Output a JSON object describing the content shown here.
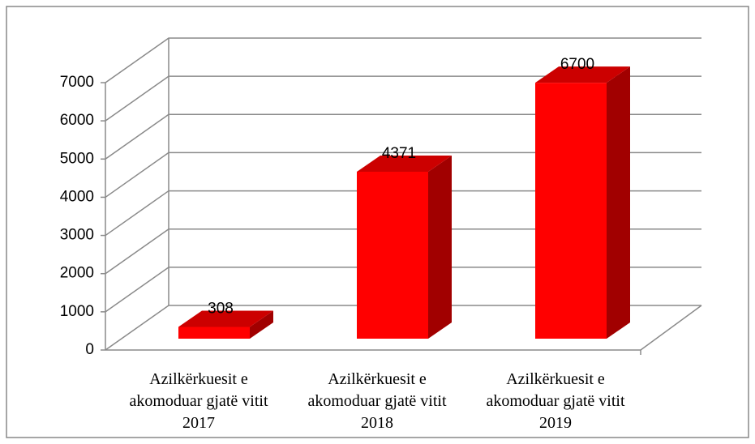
{
  "chart_data": {
    "type": "bar3d",
    "categories": [
      "Azilkërkuesit e akomoduar gjatë vitit 2017",
      "Azilkërkuesit e akomoduar gjatë vitit 2018",
      "Azilkërkuesit e akomoduar gjatë vitit 2019"
    ],
    "values": [
      308,
      4371,
      6700
    ],
    "color": "#ff0000",
    "ylim": [
      0,
      7000
    ],
    "yticks": [
      0,
      1000,
      2000,
      3000,
      4000,
      5000,
      6000,
      7000
    ],
    "grid": true
  }
}
